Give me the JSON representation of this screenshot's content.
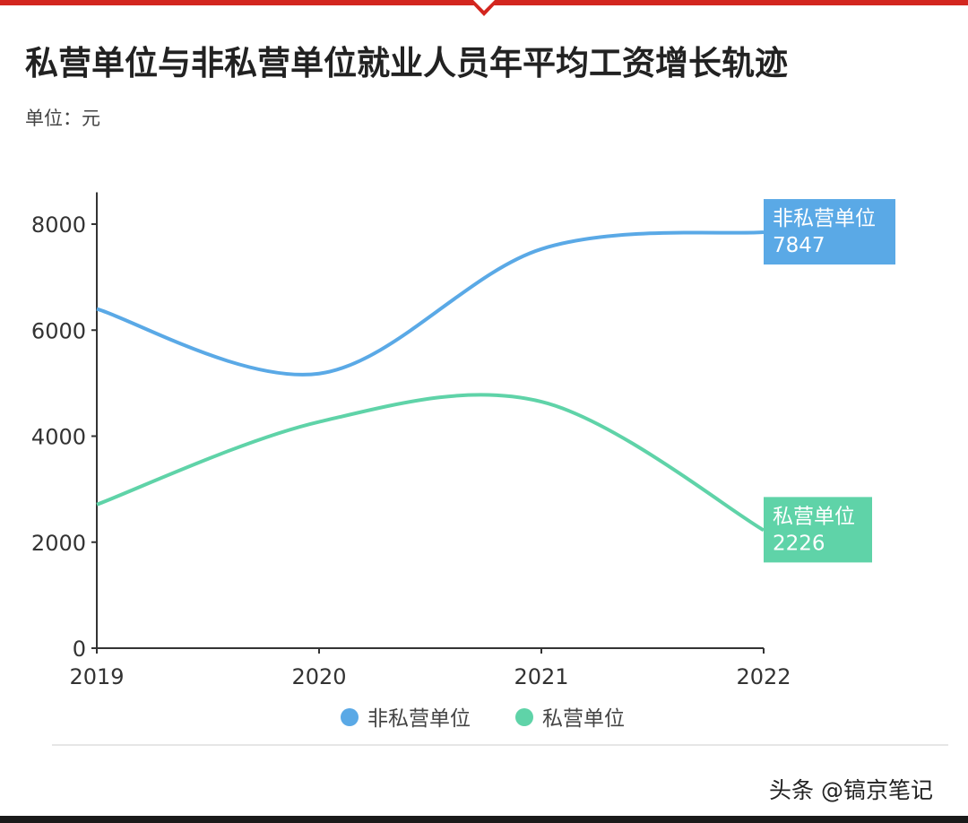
{
  "chart_data": {
    "type": "line",
    "title": "私营单位与非私营单位就业人员年平均工资增长轨迹",
    "subtitle": "单位：元",
    "categories": [
      "2019",
      "2020",
      "2021",
      "2022"
    ],
    "yticks": [
      "0",
      "2000",
      "4000",
      "6000",
      "8000"
    ],
    "ylim": [
      0,
      8600
    ],
    "grid": false,
    "smooth": true,
    "legend_position": "bottom",
    "series": [
      {
        "name": "非私营单位",
        "values": [
          6400,
          5180,
          7530,
          7847
        ],
        "color": "#5aa9e6",
        "end_label": "7847"
      },
      {
        "name": "私营单位",
        "values": [
          2710,
          4270,
          4650,
          2226
        ],
        "color": "#5fd3a8",
        "end_label": "2226"
      }
    ]
  },
  "watermark": "头条 @镐京笔记"
}
